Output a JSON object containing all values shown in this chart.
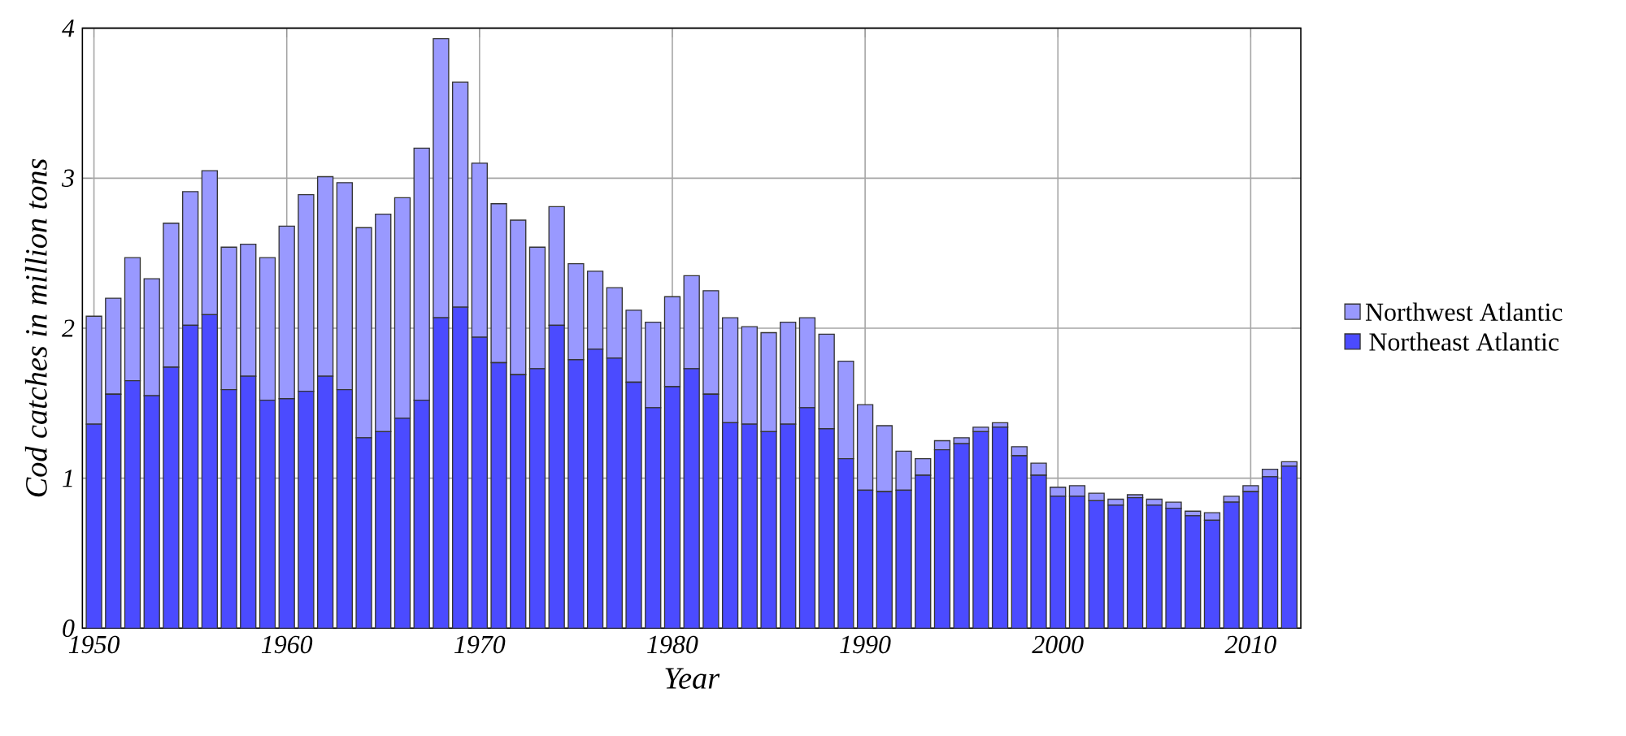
{
  "chart_data": {
    "type": "bar",
    "stacked": true,
    "xlabel": "Year",
    "ylabel": "Cod catches in million tons",
    "x": [
      1950,
      1951,
      1952,
      1953,
      1954,
      1955,
      1956,
      1957,
      1958,
      1959,
      1960,
      1961,
      1962,
      1963,
      1964,
      1965,
      1966,
      1967,
      1968,
      1969,
      1970,
      1971,
      1972,
      1973,
      1974,
      1975,
      1976,
      1977,
      1978,
      1979,
      1980,
      1981,
      1982,
      1983,
      1984,
      1985,
      1986,
      1987,
      1988,
      1989,
      1990,
      1991,
      1992,
      1993,
      1994,
      1995,
      1996,
      1997,
      1998,
      1999,
      2000,
      2001,
      2002,
      2003,
      2004,
      2005,
      2006,
      2007,
      2008,
      2009,
      2010,
      2011,
      2012
    ],
    "series": [
      {
        "name": "Northeast Atlantic",
        "color": "#4b4bff",
        "values": [
          1.36,
          1.56,
          1.65,
          1.55,
          1.74,
          2.02,
          2.09,
          1.59,
          1.68,
          1.52,
          1.53,
          1.58,
          1.68,
          1.59,
          1.27,
          1.31,
          1.4,
          1.52,
          2.07,
          2.14,
          1.94,
          1.77,
          1.69,
          1.73,
          2.02,
          1.79,
          1.86,
          1.8,
          1.64,
          1.47,
          1.61,
          1.73,
          1.56,
          1.37,
          1.36,
          1.31,
          1.36,
          1.47,
          1.33,
          1.13,
          0.92,
          0.91,
          0.92,
          1.02,
          1.19,
          1.23,
          1.31,
          1.34,
          1.15,
          1.02,
          0.88,
          0.88,
          0.85,
          0.82,
          0.87,
          0.82,
          0.8,
          0.75,
          0.72,
          0.84,
          0.91,
          1.01,
          1.08
        ]
      },
      {
        "name": "Northwest Atlantic",
        "color": "#9999ff",
        "values": [
          0.72,
          0.64,
          0.82,
          0.78,
          0.96,
          0.89,
          0.96,
          0.95,
          0.88,
          0.95,
          1.15,
          1.31,
          1.33,
          1.38,
          1.4,
          1.45,
          1.47,
          1.68,
          1.86,
          1.5,
          1.16,
          1.06,
          1.03,
          0.81,
          0.79,
          0.64,
          0.52,
          0.47,
          0.48,
          0.57,
          0.6,
          0.62,
          0.69,
          0.7,
          0.65,
          0.66,
          0.68,
          0.6,
          0.63,
          0.65,
          0.57,
          0.44,
          0.26,
          0.11,
          0.06,
          0.04,
          0.03,
          0.03,
          0.06,
          0.08,
          0.06,
          0.07,
          0.05,
          0.04,
          0.02,
          0.04,
          0.04,
          0.03,
          0.05,
          0.04,
          0.04,
          0.05,
          0.03
        ]
      }
    ],
    "xlim": [
      1949.4,
      2012.6
    ],
    "xticks": [
      1950,
      1960,
      1970,
      1980,
      1990,
      2000,
      2010
    ],
    "ylim": [
      0,
      4
    ],
    "yticks": [
      0,
      1,
      2,
      3,
      4
    ],
    "grid": true,
    "legend": "right"
  }
}
